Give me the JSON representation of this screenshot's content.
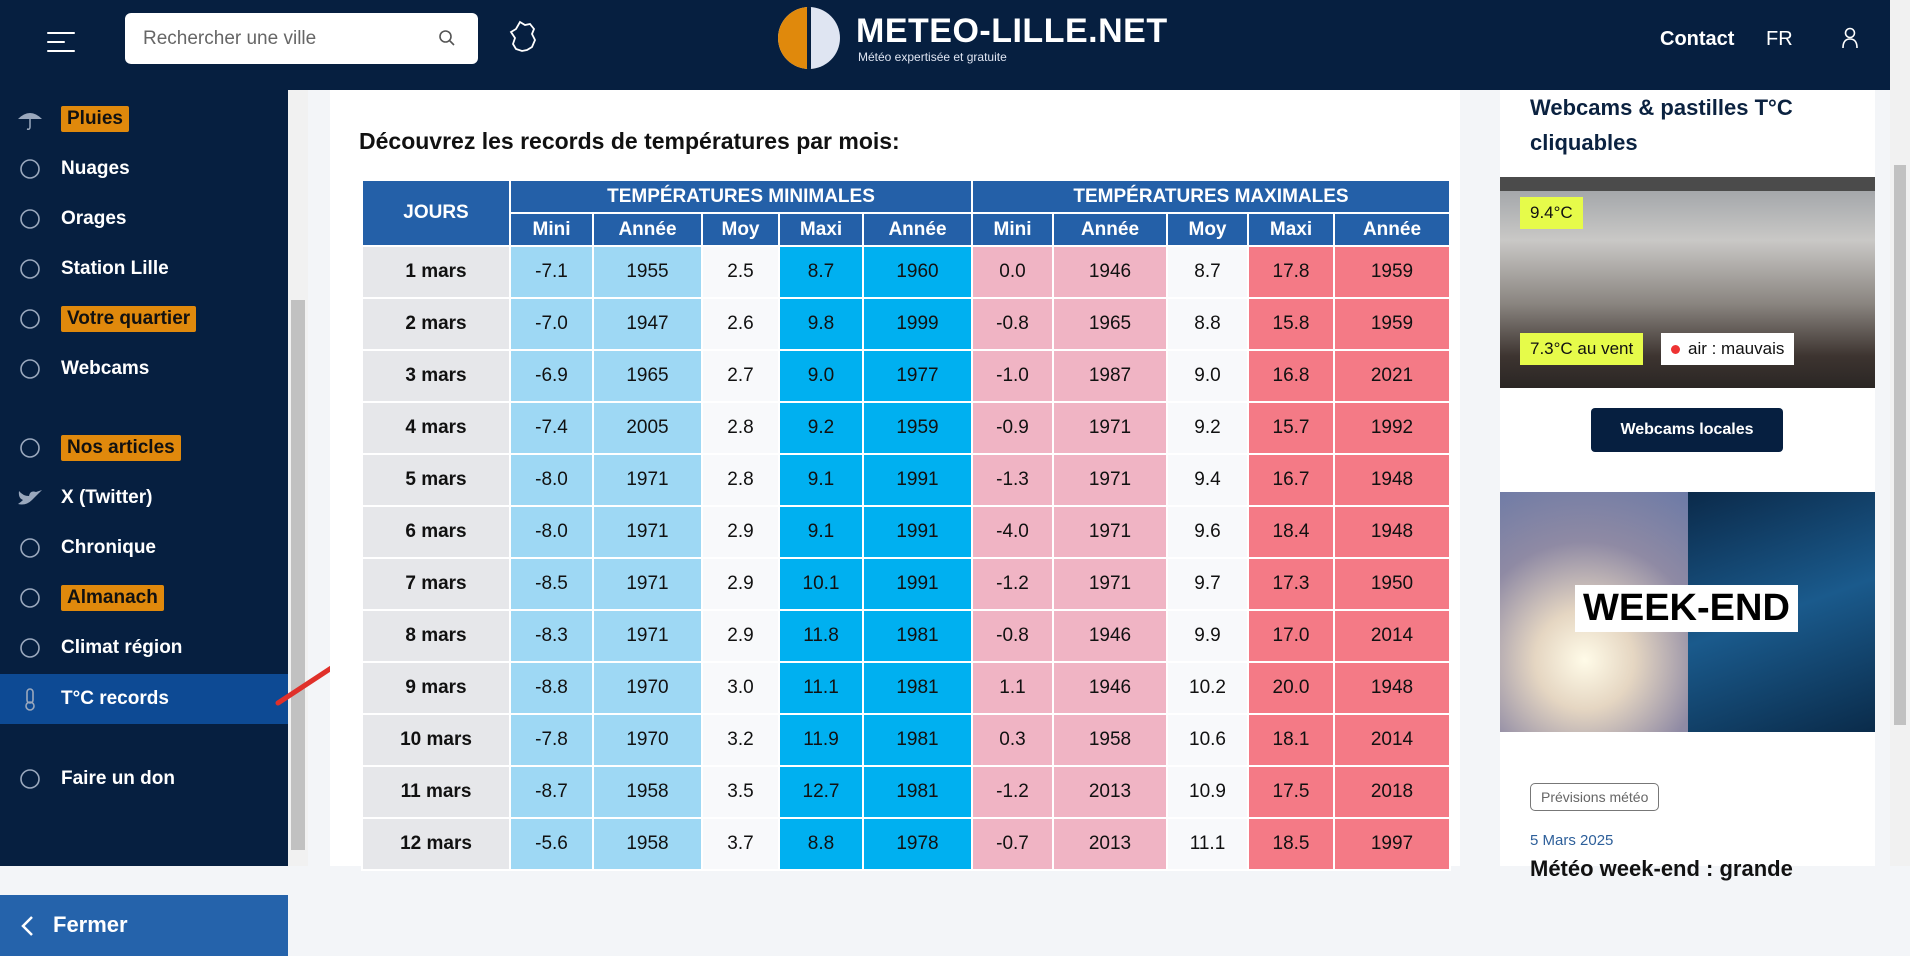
{
  "header": {
    "search_placeholder": "Rechercher une ville",
    "logo_title": "METEO-LILLE.NET",
    "logo_subtitle": "Météo expertisée et gratuite",
    "contact": "Contact",
    "language": "FR",
    "brand_colors": {
      "navy": "#061f40",
      "orange": "#e0890c"
    }
  },
  "sidebar": {
    "items": [
      {
        "label": "Pluies",
        "icon": "umbrella-icon",
        "badge": true
      },
      {
        "label": "Nuages",
        "icon": "cloud-sun-icon",
        "badge": false
      },
      {
        "label": "Orages",
        "icon": "storm-icon",
        "badge": false
      },
      {
        "label": "Station Lille",
        "icon": "weathervane-icon",
        "badge": false
      },
      {
        "label": "Votre quartier",
        "icon": "home-icon",
        "badge": true
      },
      {
        "label": "Webcams",
        "icon": "webcam-icon",
        "badge": false
      },
      {
        "label": "Nos articles",
        "icon": "newspaper-icon",
        "badge": true
      },
      {
        "label": "X (Twitter)",
        "icon": "twitter-icon",
        "badge": false
      },
      {
        "label": "Chronique",
        "icon": "wind-icon",
        "badge": false
      },
      {
        "label": "Almanach",
        "icon": "calendar-icon",
        "badge": true
      },
      {
        "label": "Climat région",
        "icon": "compass-icon",
        "badge": false
      },
      {
        "label": "T°C records",
        "icon": "thermometer-icon",
        "badge": false,
        "active": true
      },
      {
        "label": "Faire un don",
        "icon": "heart-hand-icon",
        "badge": false
      }
    ],
    "close_label": "Fermer"
  },
  "main": {
    "title": "Découvrez les records de températures par mois:",
    "table": {
      "days_header": "JOURS",
      "groups": [
        "TEMPÉRATURES MINIMALES",
        "TEMPÉRATURES MAXIMALES"
      ],
      "subheaders": [
        "Mini",
        "Année",
        "Moy",
        "Maxi",
        "Année",
        "Mini",
        "Année",
        "Moy",
        "Maxi",
        "Année"
      ],
      "rows": [
        [
          "1 mars",
          "-7.1",
          "1955",
          "2.5",
          "8.7",
          "1960",
          "0.0",
          "1946",
          "8.7",
          "17.8",
          "1959"
        ],
        [
          "2 mars",
          "-7.0",
          "1947",
          "2.6",
          "9.8",
          "1999",
          "-0.8",
          "1965",
          "8.8",
          "15.8",
          "1959"
        ],
        [
          "3 mars",
          "-6.9",
          "1965",
          "2.7",
          "9.0",
          "1977",
          "-1.0",
          "1987",
          "9.0",
          "16.8",
          "2021"
        ],
        [
          "4 mars",
          "-7.4",
          "2005",
          "2.8",
          "9.2",
          "1959",
          "-0.9",
          "1971",
          "9.2",
          "15.7",
          "1992"
        ],
        [
          "5 mars",
          "-8.0",
          "1971",
          "2.8",
          "9.1",
          "1991",
          "-1.3",
          "1971",
          "9.4",
          "16.7",
          "1948"
        ],
        [
          "6 mars",
          "-8.0",
          "1971",
          "2.9",
          "9.1",
          "1991",
          "-4.0",
          "1971",
          "9.6",
          "18.4",
          "1948"
        ],
        [
          "7 mars",
          "-8.5",
          "1971",
          "2.9",
          "10.1",
          "1991",
          "-1.2",
          "1971",
          "9.7",
          "17.3",
          "1950"
        ],
        [
          "8 mars",
          "-8.3",
          "1971",
          "2.9",
          "11.8",
          "1981",
          "-0.8",
          "1946",
          "9.9",
          "17.0",
          "2014"
        ],
        [
          "9 mars",
          "-8.8",
          "1970",
          "3.0",
          "11.1",
          "1981",
          "1.1",
          "1946",
          "10.2",
          "20.0",
          "1948"
        ],
        [
          "10 mars",
          "-7.8",
          "1970",
          "3.2",
          "11.9",
          "1981",
          "0.3",
          "1958",
          "10.6",
          "18.1",
          "2014"
        ],
        [
          "11 mars",
          "-8.7",
          "1958",
          "3.5",
          "12.7",
          "1981",
          "-1.2",
          "2013",
          "10.9",
          "17.5",
          "2018"
        ],
        [
          "12 mars",
          "-5.6",
          "1958",
          "3.7",
          "8.8",
          "1978",
          "-0.7",
          "2013",
          "11.1",
          "18.5",
          "1997"
        ]
      ]
    }
  },
  "right": {
    "title": "Webcams & pastilles T°C cliquables",
    "webcam_temp": "9.4°C",
    "webcam_wind": "7.3°C au vent",
    "webcam_air": "air : mauvais",
    "webcams_button": "Webcams locales",
    "article_image_text": "WEEK-END",
    "article_tag": "Prévisions météo",
    "article_date": "5 Mars 2025",
    "article_title": "Météo week-end : grande"
  }
}
